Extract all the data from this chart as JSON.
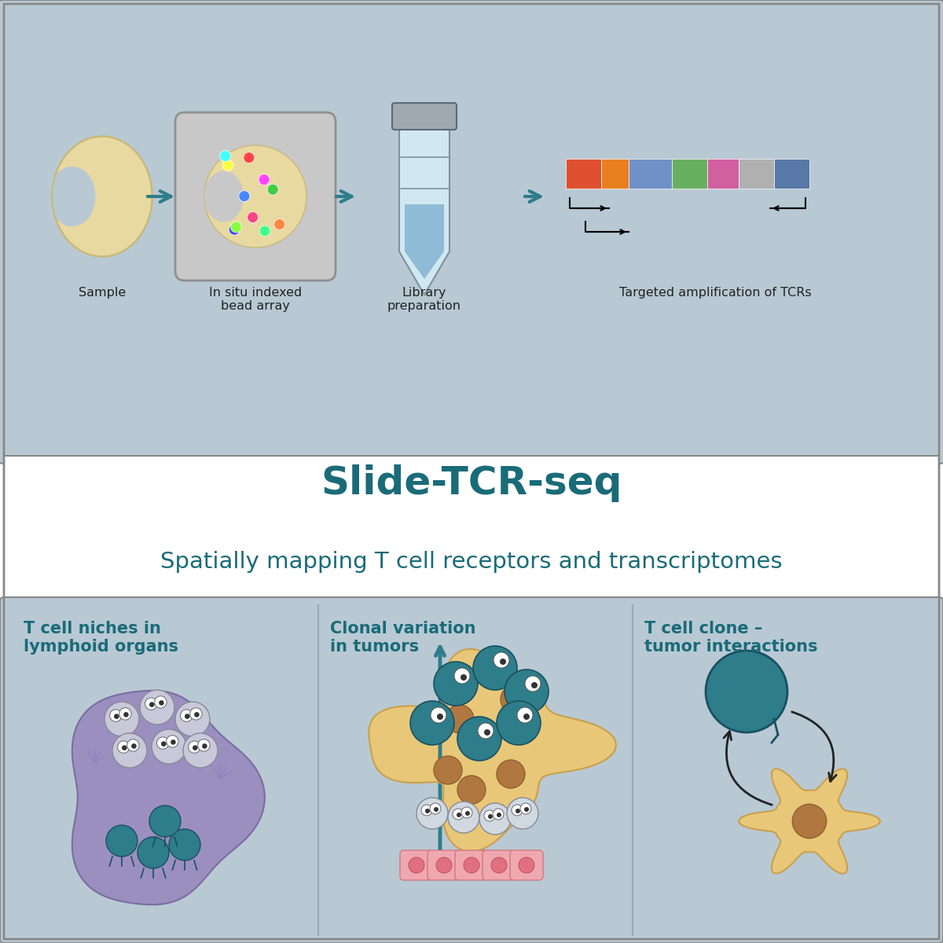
{
  "bg_top": "#b8c9d4",
  "bg_white": "#ffffff",
  "bg_bottom": "#b8c9d4",
  "teal_dark": "#2e7d8a",
  "teal_text": "#1a6b78",
  "title": "Slide-TCR-seq",
  "subtitle": "Spatially mapping T cell receptors and transcriptomes",
  "panel1_title": "T cell niches in\nlymphoid organs",
  "panel2_title": "Clonal variation\nin tumors",
  "panel3_title": "T cell clone –\ntumor interactions",
  "label1": "Sample",
  "label2": "In situ indexed\nbead array",
  "label3": "Library\npreparation",
  "label4": "Targeted amplification of TCRs",
  "kidney_color": "#e8d9a0",
  "kidney_outline": "#c9b87a",
  "lymph_color": "#9b8fc0",
  "lymph_outline": "#7a6fa0",
  "tcell_teal": "#2e7d8a",
  "tumor_color": "#e8c878",
  "tumor_cell_brown": "#b07840",
  "pink_cell": "#f0a8a8",
  "arrow_teal": "#2e7d8a",
  "tcr_colors": [
    "#e05030",
    "#e88020",
    "#7090c8",
    "#68b060",
    "#d060a0",
    "#b0b0b0",
    "#5878a8"
  ]
}
